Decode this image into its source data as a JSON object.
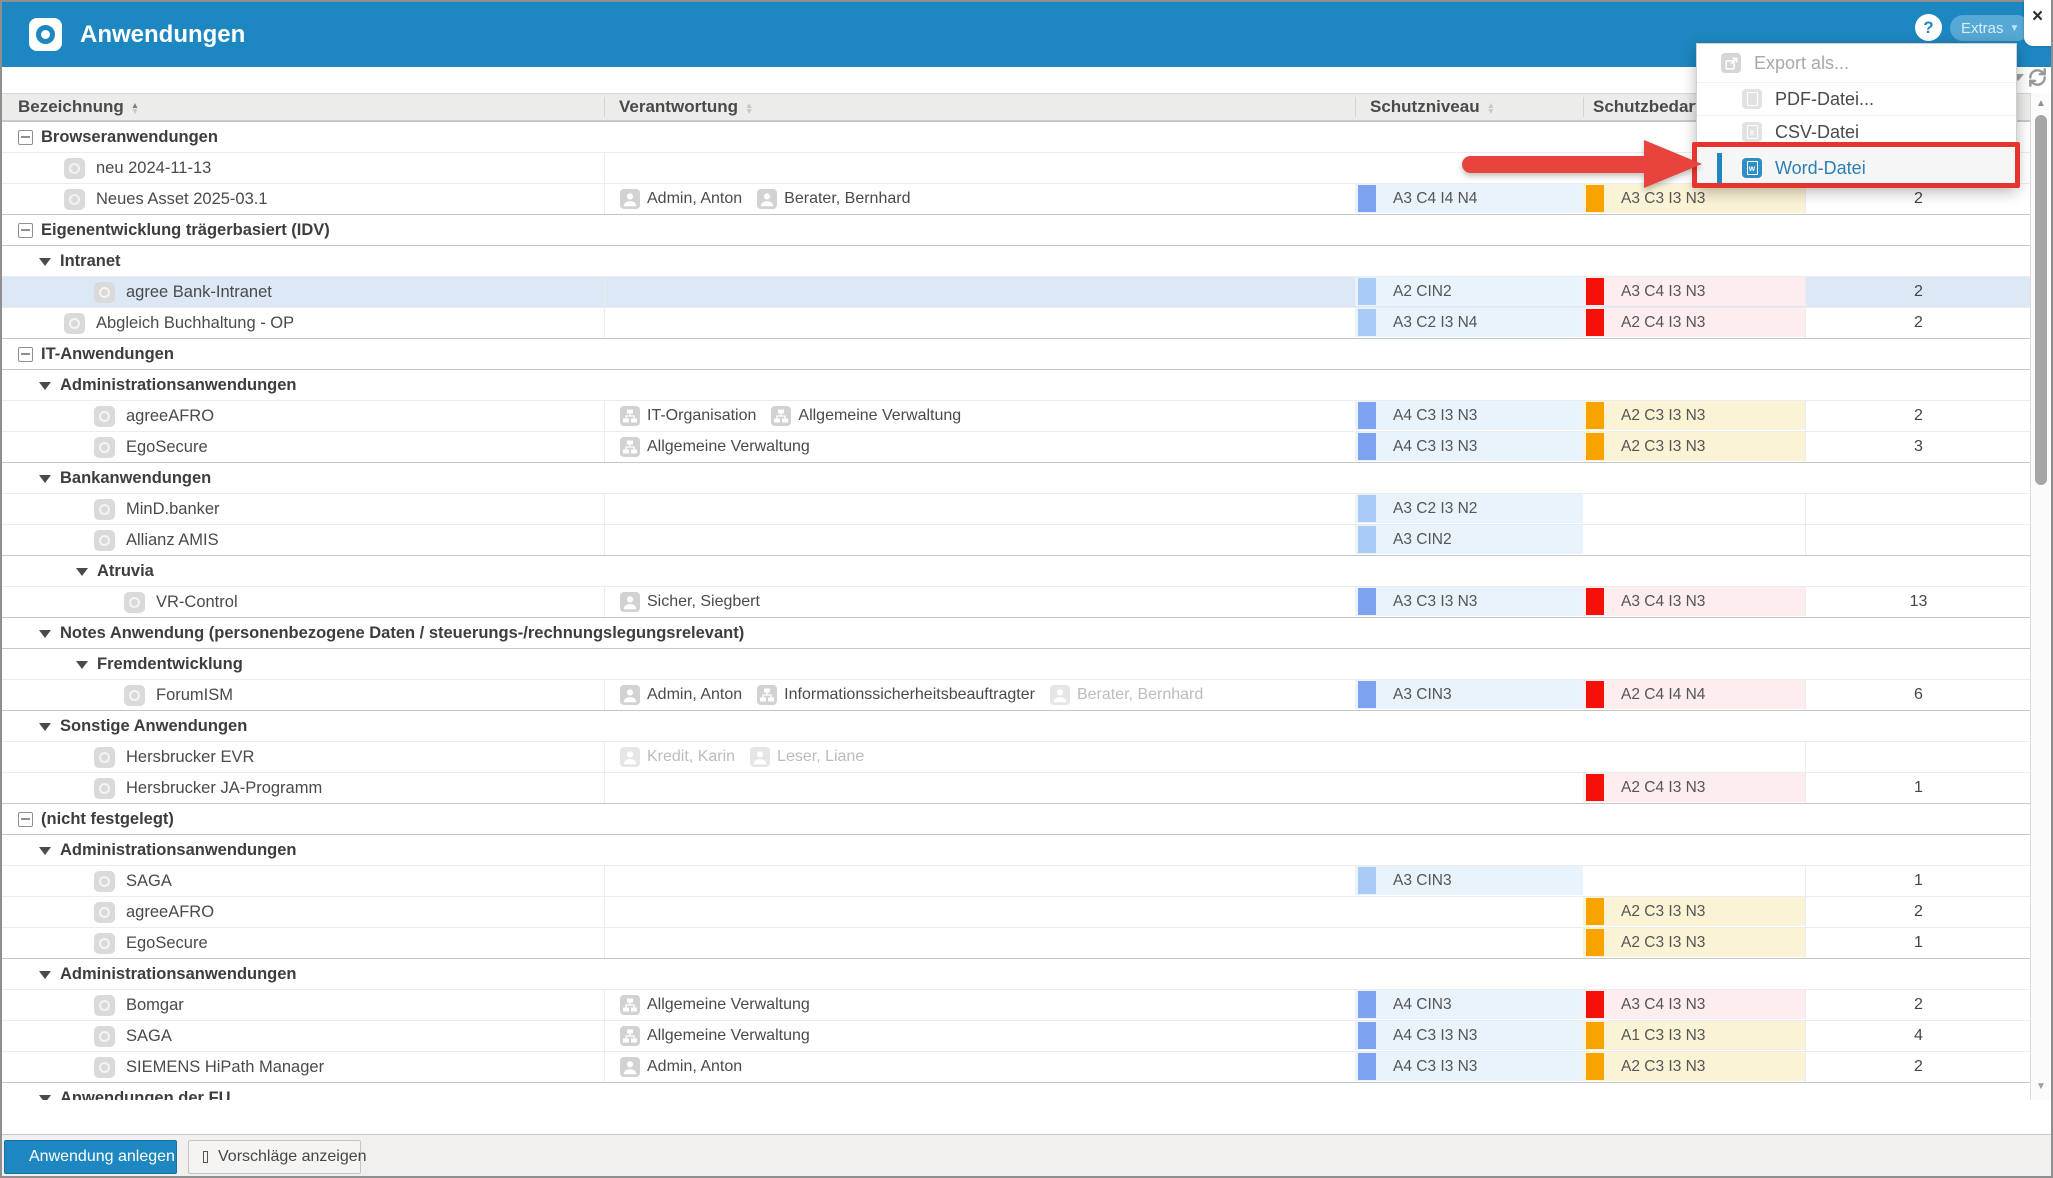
{
  "window": {
    "title": "Anwendungen",
    "help_label": "?",
    "extras_label": "Extras",
    "close_label": "×"
  },
  "colors": {
    "header_blue": "#1d87c1",
    "extras_pill": "#55a9d4",
    "selected_row": "#dce8f6",
    "niveau_cell_bg": "#e8f3fc",
    "niveau_bar_light": "#a9cbf5",
    "niveau_bar_medium": "#7da3f1",
    "bedarf_red_bar": "#f6100a",
    "bedarf_red_bg": "#fdedee",
    "bedarf_orange_bar": "#f8a300",
    "bedarf_orange_bg": "#fbf3d6",
    "annotation_red": "#e6342f"
  },
  "icons": {
    "logo": "target-logo-icon",
    "help": "help-icon",
    "close": "close-icon",
    "refresh": "refresh-icon",
    "app": "application-icon",
    "person": "person-icon",
    "org": "org-unit-icon",
    "export": "export-icon",
    "pdf": "pdf-file-icon",
    "csv": "csv-file-icon",
    "word": "word-file-icon"
  },
  "menu": {
    "items": [
      {
        "label": "Export als...",
        "icon": "export",
        "kind": "header",
        "disabled": true
      },
      {
        "label": "PDF-Datei...",
        "icon": "pdf",
        "kind": "item",
        "letter": ""
      },
      {
        "label": "CSV-Datei",
        "icon": "csv",
        "kind": "item",
        "letter": "x"
      },
      {
        "label": "Word-Datei",
        "icon": "word",
        "kind": "item",
        "letter": "w",
        "active": true,
        "highlighted": true
      }
    ]
  },
  "annotations": {
    "arrow_points_to": "Word-Datei",
    "arrow_color": "#e8443e",
    "highlight_border_color": "#e6342f"
  },
  "table": {
    "columns": [
      {
        "label": "Bezeichnung",
        "sorted": "asc"
      },
      {
        "label": "Verantwortung",
        "sorted": null
      },
      {
        "label": "Schutzniveau",
        "sorted": null
      },
      {
        "label": "Schutzbedarf",
        "sorted": null
      }
    ],
    "rows": [
      {
        "type": "group",
        "level": 0,
        "toggle": "minus",
        "label": "Browseranwendungen"
      },
      {
        "type": "app",
        "level": 0,
        "label": "neu 2024-11-13",
        "people": [],
        "niveau": null,
        "bedarf": null,
        "count": ""
      },
      {
        "type": "app",
        "level": 0,
        "label": "Neues Asset 2025-03.1",
        "people": [
          {
            "icon": "person",
            "name": "Admin, Anton",
            "muted": false
          },
          {
            "icon": "person",
            "name": "Berater, Bernhard",
            "muted": false
          }
        ],
        "niveau": {
          "text": "A3 C4 I4 N4",
          "bar": "medium"
        },
        "bedarf": {
          "text": "A3 C3 I3 N3",
          "severity": "orange"
        },
        "count": "2"
      },
      {
        "type": "group",
        "level": 0,
        "toggle": "minus",
        "label": "Eigenentwicklung trägerbasiert (IDV)"
      },
      {
        "type": "group",
        "level": 1,
        "toggle": "triangle",
        "label": "Intranet"
      },
      {
        "type": "app",
        "level": 1,
        "label": "agree Bank-Intranet",
        "selected": true,
        "people": [],
        "niveau": {
          "text": "A2 CIN2",
          "bar": "light"
        },
        "bedarf": {
          "text": "A3 C4 I3 N3",
          "severity": "red"
        },
        "count": "2"
      },
      {
        "type": "app",
        "level": 0,
        "label": "Abgleich Buchhaltung - OP",
        "people": [],
        "niveau": {
          "text": "A3 C2 I3 N4",
          "bar": "light"
        },
        "bedarf": {
          "text": "A2 C4 I3 N3",
          "severity": "red"
        },
        "count": "2"
      },
      {
        "type": "group",
        "level": 0,
        "toggle": "minus",
        "label": "IT-Anwendungen"
      },
      {
        "type": "group",
        "level": 1,
        "toggle": "triangle",
        "label": "Administrationsanwendungen"
      },
      {
        "type": "app",
        "level": 1,
        "label": "agreeAFRO",
        "people": [
          {
            "icon": "org",
            "name": "IT-Organisation",
            "muted": false
          },
          {
            "icon": "org",
            "name": "Allgemeine Verwaltung",
            "muted": false
          }
        ],
        "niveau": {
          "text": "A4 C3 I3 N3",
          "bar": "medium"
        },
        "bedarf": {
          "text": "A2 C3 I3 N3",
          "severity": "orange"
        },
        "count": "2"
      },
      {
        "type": "app",
        "level": 1,
        "label": "EgoSecure",
        "people": [
          {
            "icon": "org",
            "name": "Allgemeine Verwaltung",
            "muted": false
          }
        ],
        "niveau": {
          "text": "A4 C3 I3 N3",
          "bar": "medium"
        },
        "bedarf": {
          "text": "A2 C3 I3 N3",
          "severity": "orange"
        },
        "count": "3"
      },
      {
        "type": "group",
        "level": 1,
        "toggle": "triangle",
        "label": "Bankanwendungen"
      },
      {
        "type": "app",
        "level": 1,
        "label": "MinD.banker",
        "people": [],
        "niveau": {
          "text": "A3 C2 I3 N2",
          "bar": "light"
        },
        "bedarf": null,
        "count": ""
      },
      {
        "type": "app",
        "level": 1,
        "label": "Allianz AMIS",
        "people": [],
        "niveau": {
          "text": "A3 CIN2",
          "bar": "light"
        },
        "bedarf": null,
        "count": ""
      },
      {
        "type": "group",
        "level": 2,
        "toggle": "triangle",
        "label": "Atruvia"
      },
      {
        "type": "app",
        "level": 2,
        "label": "VR-Control",
        "people": [
          {
            "icon": "person",
            "name": "Sicher, Siegbert",
            "muted": false
          }
        ],
        "niveau": {
          "text": "A3 C3 I3 N3",
          "bar": "medium"
        },
        "bedarf": {
          "text": "A3 C4 I3 N3",
          "severity": "red"
        },
        "count": "13"
      },
      {
        "type": "group",
        "level": 1,
        "toggle": "triangle",
        "label": "Notes Anwendung (personenbezogene Daten / steuerungs-/rechnungslegungsrelevant)"
      },
      {
        "type": "group",
        "level": 2,
        "toggle": "triangle",
        "label": "Fremdentwicklung"
      },
      {
        "type": "app",
        "level": 2,
        "label": "ForumISM",
        "people": [
          {
            "icon": "person",
            "name": "Admin, Anton",
            "muted": false
          },
          {
            "icon": "org",
            "name": "Informationssicherheitsbeauftragter",
            "muted": false
          },
          {
            "icon": "person",
            "name": "Berater, Bernhard",
            "muted": true
          }
        ],
        "niveau": {
          "text": "A3 CIN3",
          "bar": "medium"
        },
        "bedarf": {
          "text": "A2 C4 I4 N4",
          "severity": "red"
        },
        "count": "6"
      },
      {
        "type": "group",
        "level": 1,
        "toggle": "triangle",
        "label": "Sonstige Anwendungen"
      },
      {
        "type": "app",
        "level": 1,
        "label": "Hersbrucker EVR",
        "people": [
          {
            "icon": "person",
            "name": "Kredit, Karin",
            "muted": true
          },
          {
            "icon": "person",
            "name": "Leser, Liane",
            "muted": true
          }
        ],
        "niveau": null,
        "bedarf": null,
        "count": ""
      },
      {
        "type": "app",
        "level": 1,
        "label": "Hersbrucker JA-Programm",
        "people": [],
        "niveau": null,
        "bedarf": {
          "text": "A2 C4 I3 N3",
          "severity": "red"
        },
        "count": "1"
      },
      {
        "type": "group",
        "level": 0,
        "toggle": "minus",
        "label": "(nicht festgelegt)"
      },
      {
        "type": "group",
        "level": 1,
        "toggle": "triangle",
        "label": "Administrationsanwendungen"
      },
      {
        "type": "app",
        "level": 1,
        "label": "SAGA",
        "people": [],
        "niveau": {
          "text": "A3 CIN3",
          "bar": "light"
        },
        "bedarf": null,
        "count": "1"
      },
      {
        "type": "app",
        "level": 1,
        "label": "agreeAFRO",
        "people": [],
        "niveau": null,
        "bedarf": {
          "text": "A2 C3 I3 N3",
          "severity": "orange"
        },
        "count": "2"
      },
      {
        "type": "app",
        "level": 1,
        "label": "EgoSecure",
        "people": [],
        "niveau": null,
        "bedarf": {
          "text": "A2 C3 I3 N3",
          "severity": "orange"
        },
        "count": "1"
      },
      {
        "type": "group",
        "level": 1,
        "toggle": "triangle",
        "label": "Administrationsanwendungen"
      },
      {
        "type": "app",
        "level": 1,
        "label": "Bomgar",
        "people": [
          {
            "icon": "org",
            "name": "Allgemeine Verwaltung",
            "muted": false
          }
        ],
        "niveau": {
          "text": "A4 CIN3",
          "bar": "medium"
        },
        "bedarf": {
          "text": "A3 C4 I3 N3",
          "severity": "red"
        },
        "count": "2"
      },
      {
        "type": "app",
        "level": 1,
        "label": "SAGA",
        "people": [
          {
            "icon": "org",
            "name": "Allgemeine Verwaltung",
            "muted": false
          }
        ],
        "niveau": {
          "text": "A4 C3 I3 N3",
          "bar": "medium"
        },
        "bedarf": {
          "text": "A1 C3 I3 N3",
          "severity": "orange"
        },
        "count": "4"
      },
      {
        "type": "app",
        "level": 1,
        "label": "SIEMENS HiPath Manager",
        "people": [
          {
            "icon": "person",
            "name": "Admin, Anton",
            "muted": false
          }
        ],
        "niveau": {
          "text": "A4 C3 I3 N3",
          "bar": "medium"
        },
        "bedarf": {
          "text": "A2 C3 I3 N3",
          "severity": "orange"
        },
        "count": "2"
      },
      {
        "type": "group",
        "level": 1,
        "toggle": "triangle",
        "label": "Anwendungen der FU"
      }
    ]
  },
  "footer": {
    "create_button": "Anwendung anlegen",
    "suggest_button": "Vorschläge anzeigen"
  }
}
